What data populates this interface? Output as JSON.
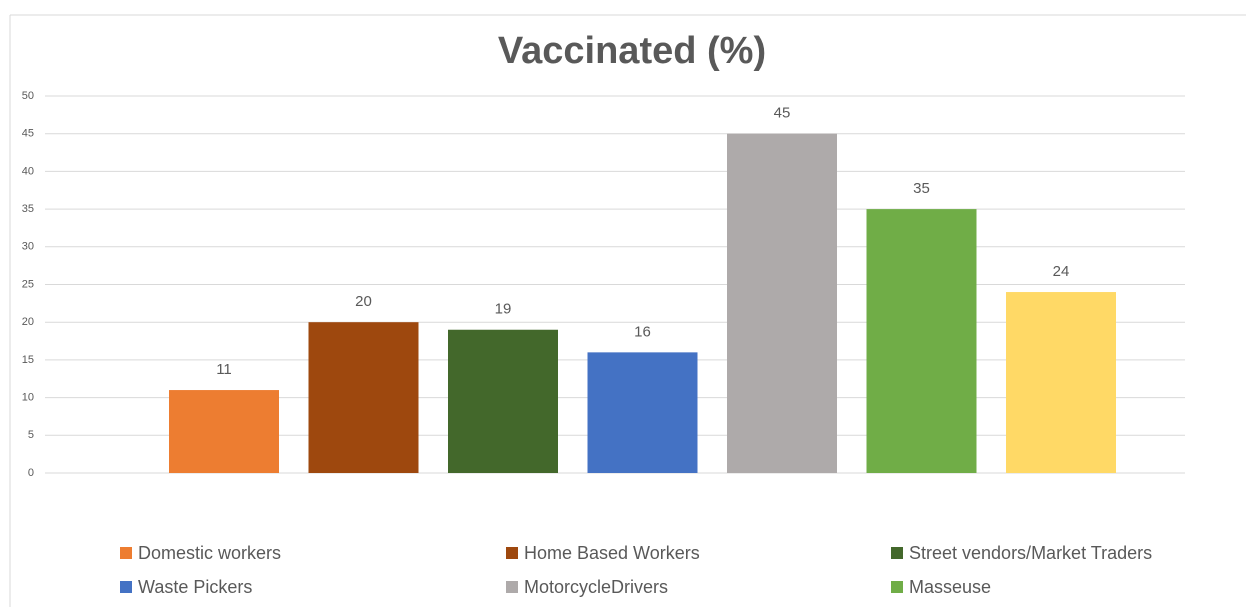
{
  "chart_data": {
    "type": "bar",
    "title": "Vaccinated (%)",
    "series": [
      {
        "name": "Domestic workers",
        "color": "#ed7d31",
        "values": [
          11
        ]
      },
      {
        "name": "Home Based Workers",
        "color": "#9e480e",
        "values": [
          20
        ]
      },
      {
        "name": "Street vendors/Market Traders",
        "color": "#43682b",
        "values": [
          19
        ]
      },
      {
        "name": "Waste Pickers",
        "color": "#4472c4",
        "values": [
          16
        ]
      },
      {
        "name": "MotorcycleDrivers",
        "color": "#aeaaaa",
        "values": [
          45
        ]
      },
      {
        "name": "Masseuse",
        "color": "#70ad47",
        "values": [
          35
        ]
      },
      {
        "color": "#ffd966",
        "values": [
          24
        ]
      }
    ],
    "ylim": [
      0,
      50
    ],
    "yticks": [
      0,
      5,
      10,
      15,
      20,
      25,
      30,
      35,
      40,
      45,
      50
    ],
    "grid": true
  }
}
